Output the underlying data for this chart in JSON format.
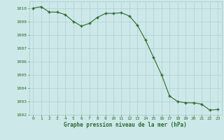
{
  "x": [
    0,
    1,
    2,
    3,
    4,
    5,
    6,
    7,
    8,
    9,
    10,
    11,
    12,
    13,
    14,
    15,
    16,
    17,
    18,
    19,
    20,
    21,
    22,
    23
  ],
  "y": [
    1010.0,
    1010.1,
    1009.7,
    1009.7,
    1009.5,
    1009.0,
    1008.65,
    1008.85,
    1009.3,
    1009.6,
    1009.6,
    1009.65,
    1009.4,
    1008.7,
    1007.6,
    1006.3,
    1005.0,
    1003.4,
    1003.0,
    1002.9,
    1002.9,
    1002.8,
    1002.35,
    1002.4
  ],
  "line_color": "#2d6a2d",
  "marker_color": "#2d6a2d",
  "bg_color": "#cce8e8",
  "grid_color": "#aac8c8",
  "xlabel": "Graphe pression niveau de la mer (hPa)",
  "xlabel_color": "#2d6a2d",
  "tick_color": "#2d6a2d",
  "ylim": [
    1002,
    1010.5
  ],
  "xlim": [
    -0.5,
    23.5
  ],
  "yticks": [
    1002,
    1003,
    1004,
    1005,
    1006,
    1007,
    1008,
    1009,
    1010
  ],
  "xticks": [
    0,
    1,
    2,
    3,
    4,
    5,
    6,
    7,
    8,
    9,
    10,
    11,
    12,
    13,
    14,
    15,
    16,
    17,
    18,
    19,
    20,
    21,
    22,
    23
  ]
}
